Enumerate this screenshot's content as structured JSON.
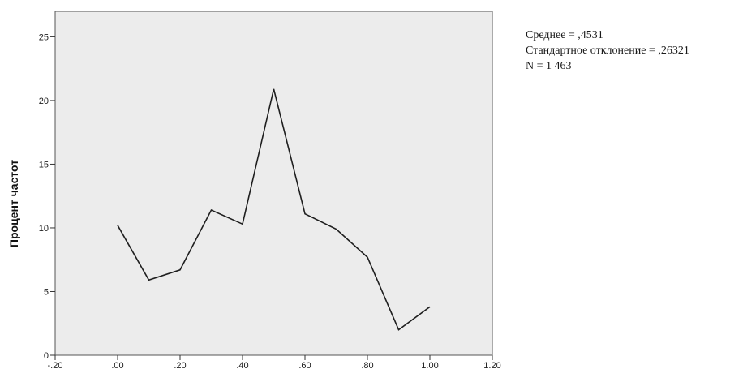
{
  "chart_data": {
    "type": "line",
    "title": "",
    "xlabel": "",
    "ylabel": "Процент частот",
    "xlim": [
      -0.2,
      1.2
    ],
    "ylim": [
      0,
      27
    ],
    "x_ticks": [
      {
        "value": -0.2,
        "label": "-.20"
      },
      {
        "value": 0.0,
        "label": ".00"
      },
      {
        "value": 0.2,
        "label": ".20"
      },
      {
        "value": 0.4,
        "label": ".40"
      },
      {
        "value": 0.6,
        "label": ".60"
      },
      {
        "value": 0.8,
        "label": ".80"
      },
      {
        "value": 1.0,
        "label": "1.00"
      },
      {
        "value": 1.2,
        "label": "1.20"
      }
    ],
    "y_ticks": [
      {
        "value": 0,
        "label": "0"
      },
      {
        "value": 5,
        "label": "5"
      },
      {
        "value": 10,
        "label": "10"
      },
      {
        "value": 15,
        "label": "15"
      },
      {
        "value": 20,
        "label": "20"
      },
      {
        "value": 25,
        "label": "25"
      }
    ],
    "grid": false,
    "series": [
      {
        "x": [
          0.0,
          0.1,
          0.2,
          0.3,
          0.4,
          0.5,
          0.6,
          0.7,
          0.8,
          0.9,
          1.0
        ],
        "values": [
          10.2,
          5.9,
          6.7,
          11.4,
          10.3,
          20.9,
          11.1,
          9.9,
          7.7,
          2.0,
          3.8
        ]
      }
    ]
  },
  "stats": {
    "mean": "Среднее = ,4531",
    "std": "Стандартное отклонение = ,26321",
    "n": "N = 1 463"
  },
  "colors": {
    "plot_background": "#ececec",
    "line": "#1f1f1f",
    "frame": "#555555"
  }
}
